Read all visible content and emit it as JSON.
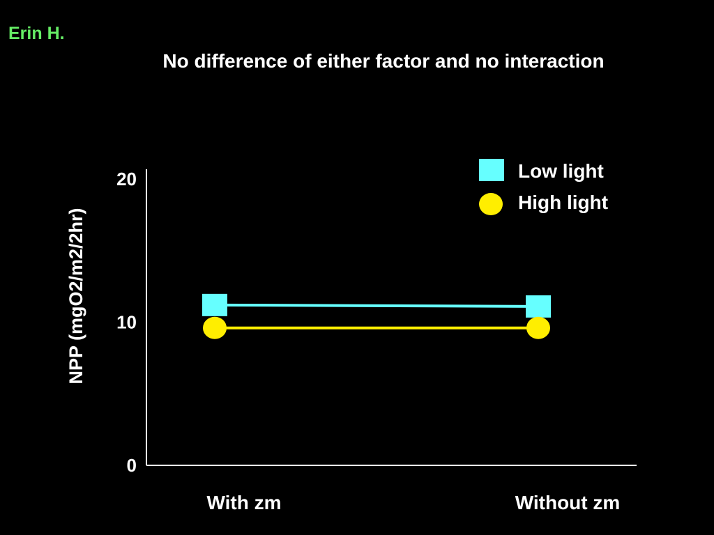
{
  "author": "Erin H.",
  "colors": {
    "low_light": "#66ffff",
    "high_light": "#ffee00",
    "author": "#66ee66",
    "axis": "#ffffff"
  },
  "chart_data": {
    "type": "line",
    "title": "No difference of either factor and no interaction",
    "ylabel": "NPP (mgO2/m2/2hr)",
    "xlabel": "",
    "categories": [
      "With zm",
      "Without zm"
    ],
    "ylim": [
      0,
      20
    ],
    "yticks": [
      "0",
      "10",
      "20"
    ],
    "legend_position": "top-right",
    "series": [
      {
        "name": "Low light",
        "marker": "square",
        "values": [
          11.2,
          11.1
        ]
      },
      {
        "name": "High light",
        "marker": "circle",
        "values": [
          9.6,
          9.6
        ]
      }
    ]
  }
}
